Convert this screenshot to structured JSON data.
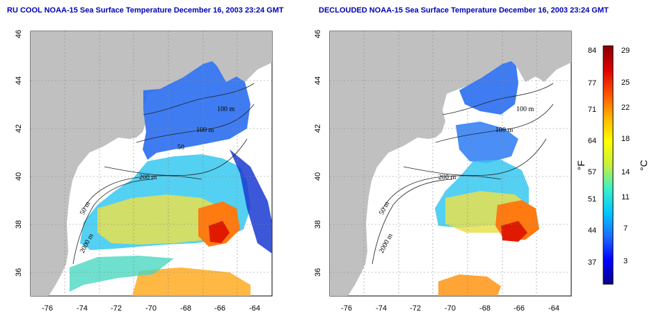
{
  "panels": [
    {
      "title": "RU COOL NOAA-15 Sea Surface Temperature December 16, 2003 23:24 GMT",
      "x_ticks": [
        "-76",
        "-74",
        "-72",
        "-70",
        "-68",
        "-66",
        "-64"
      ],
      "y_ticks": [
        "36",
        "38",
        "40",
        "42",
        "44",
        "46"
      ],
      "contour_labels": [
        "100 m",
        "100 m",
        "50",
        "200 m",
        "50 m",
        "2000 m"
      ]
    },
    {
      "title": "DECLOUDED NOAA-15 Sea Surface Temperature December 16, 2003 23:24 GMT",
      "x_ticks": [
        "-76",
        "-74",
        "-72",
        "-70",
        "-68",
        "-66",
        "-64"
      ],
      "y_ticks": [
        "36",
        "38",
        "40",
        "42",
        "44",
        "46"
      ],
      "contour_labels": [
        "100 m",
        "100 m",
        "200 m",
        "50 m",
        "2000 m"
      ]
    }
  ],
  "colorbar": {
    "left_unit": "°F",
    "right_unit": "°C",
    "fahrenheit_ticks": [
      "84",
      "77",
      "71",
      "64",
      "57",
      "51",
      "44",
      "37"
    ],
    "celsius_ticks": [
      "29",
      "25",
      "22",
      "18",
      "14",
      "11",
      "7",
      "3"
    ],
    "colors": [
      "#08008a",
      "#0000ff",
      "#1e6bff",
      "#00c8ff",
      "#3cf0c8",
      "#c8f03c",
      "#ffff00",
      "#ffb400",
      "#ff5000",
      "#dc0000",
      "#8a0000"
    ]
  },
  "colors": {
    "land": "#c0c0c0",
    "cloud": "#ffffff",
    "title": "#0000b4"
  },
  "map_extent": {
    "lon": [
      -77,
      -63
    ],
    "lat": [
      35,
      46
    ]
  }
}
